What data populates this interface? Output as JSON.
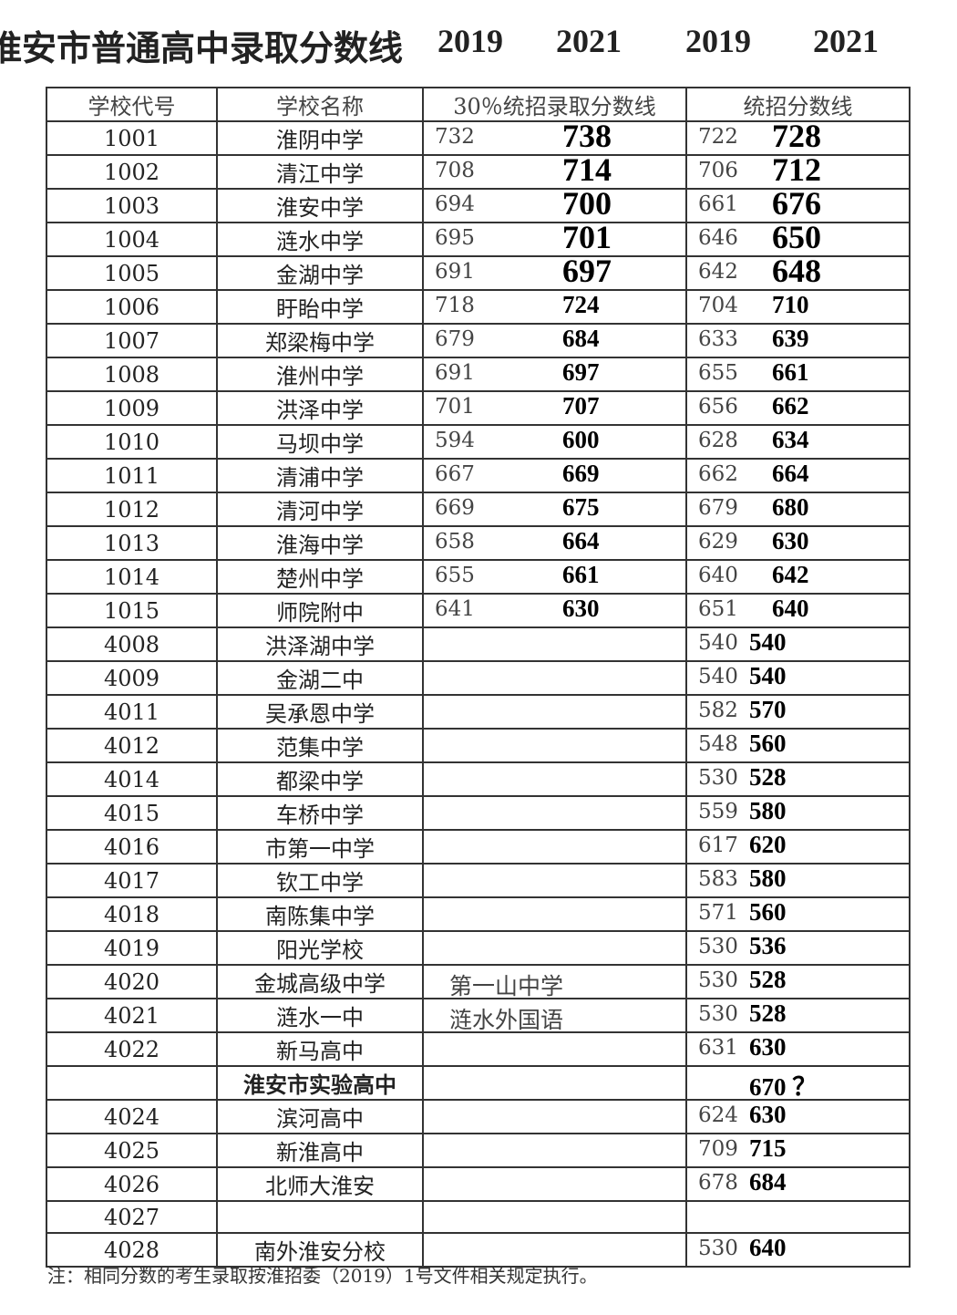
{
  "header": {
    "title": "淮安市普通高中录取分数线",
    "years": [
      "2019",
      "2021",
      "2019",
      "2021"
    ]
  },
  "table": {
    "columns": [
      "学校代号",
      "学校名称",
      "30％统招录取分数线",
      "统招分数线"
    ],
    "rows": [
      [
        1001,
        "淮阴中学",
        732,
        738,
        722,
        728
      ],
      [
        1002,
        "清江中学",
        708,
        714,
        706,
        712
      ],
      [
        1003,
        "淮安中学",
        694,
        700,
        661,
        676
      ],
      [
        1004,
        "涟水中学",
        695,
        701,
        646,
        650
      ],
      [
        1005,
        "金湖中学",
        691,
        697,
        642,
        648
      ],
      [
        1006,
        "盱眙中学",
        718,
        724,
        704,
        710
      ],
      [
        1007,
        "郑梁梅中学",
        679,
        684,
        633,
        639
      ],
      [
        1008,
        "淮州中学",
        691,
        697,
        655,
        661
      ],
      [
        1009,
        "洪泽中学",
        701,
        707,
        656,
        662
      ],
      [
        1010,
        "马坝中学",
        594,
        600,
        628,
        634
      ],
      [
        1011,
        "清浦中学",
        667,
        669,
        662,
        664
      ],
      [
        1012,
        "清河中学",
        669,
        675,
        679,
        680
      ],
      [
        1013,
        "淮海中学",
        658,
        664,
        629,
        630
      ],
      [
        1014,
        "楚州中学",
        655,
        661,
        640,
        642
      ],
      [
        1015,
        "师院附中",
        641,
        630,
        651,
        640
      ],
      [
        4008,
        "洪泽湖中学",
        null,
        null,
        540,
        540
      ],
      [
        4009,
        "金湖二中",
        null,
        null,
        540,
        540
      ],
      [
        4011,
        "吴承恩中学",
        null,
        null,
        582,
        570
      ],
      [
        4012,
        "范集中学",
        null,
        null,
        548,
        560
      ],
      [
        4014,
        "都梁中学",
        null,
        null,
        530,
        528
      ],
      [
        4015,
        "车桥中学",
        null,
        null,
        559,
        580
      ],
      [
        4016,
        "市第一中学",
        null,
        null,
        617,
        620
      ],
      [
        4017,
        "钦工中学",
        null,
        null,
        583,
        580
      ],
      [
        4018,
        "南陈集中学",
        null,
        null,
        571,
        560
      ],
      [
        4019,
        "阳光学校",
        null,
        null,
        530,
        536
      ],
      [
        4020,
        "金城高级中学",
        "第一山中学",
        null,
        530,
        528
      ],
      [
        4021,
        "涟水一中",
        "涟水外国语",
        null,
        530,
        528
      ],
      [
        4022,
        "新马高中",
        null,
        null,
        631,
        630
      ],
      [
        null,
        "淮安市实验高中",
        null,
        null,
        null,
        "670 ？"
      ],
      [
        4024,
        "滨河高中",
        null,
        null,
        624,
        630
      ],
      [
        4025,
        "新淮高中",
        null,
        null,
        709,
        715
      ],
      [
        4026,
        "北师大淮安",
        null,
        null,
        678,
        684
      ],
      [
        4027,
        null,
        null,
        null,
        null,
        null
      ],
      [
        4028,
        "南外淮安分校",
        null,
        null,
        530,
        640
      ]
    ]
  },
  "footnote": "注：相同分数的考生录取按淮招委（2019）1号文件相关规定执行。"
}
